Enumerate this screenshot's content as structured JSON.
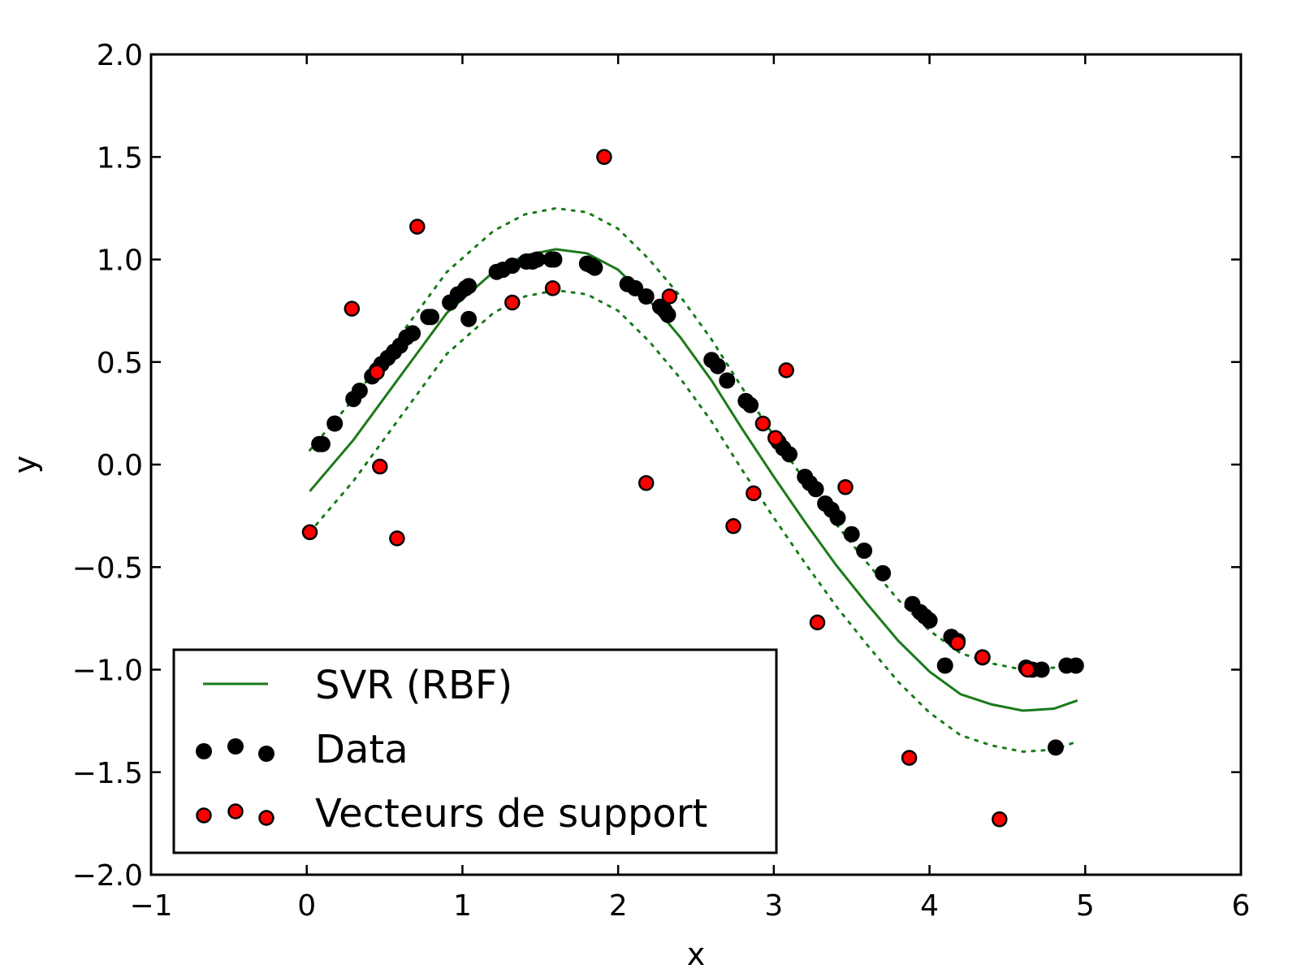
{
  "chart_data": {
    "type": "scatter",
    "title": "",
    "xlabel": "x",
    "ylabel": "y",
    "xlim": [
      -1,
      6
    ],
    "ylim": [
      -2.0,
      2.0
    ],
    "xticks": [
      -1,
      0,
      1,
      2,
      3,
      4,
      5,
      6
    ],
    "xtick_labels": [
      "−1",
      "0",
      "1",
      "2",
      "3",
      "4",
      "5",
      "6"
    ],
    "yticks": [
      -2.0,
      -1.5,
      -1.0,
      -0.5,
      0.0,
      0.5,
      1.0,
      1.5,
      2.0
    ],
    "ytick_labels": [
      "−2.0",
      "−1.5",
      "−1.0",
      "−0.5",
      "0.0",
      "0.5",
      "1.0",
      "1.5",
      "2.0"
    ],
    "grid": false,
    "legend_position": "lower-left",
    "colors": {
      "svr_line": "#1a7a1a",
      "data_point": "#000000",
      "support_vector": "#ff0000"
    },
    "series": [
      {
        "name": "SVR (RBF)",
        "kind": "line",
        "x": [
          0.02,
          0.3,
          0.6,
          0.9,
          1.2,
          1.4,
          1.6,
          1.8,
          2.0,
          2.2,
          2.4,
          2.6,
          2.8,
          3.0,
          3.2,
          3.4,
          3.6,
          3.8,
          4.0,
          4.2,
          4.4,
          4.6,
          4.8,
          4.95
        ],
        "y": [
          -0.13,
          0.12,
          0.43,
          0.74,
          0.94,
          1.02,
          1.05,
          1.03,
          0.95,
          0.8,
          0.62,
          0.41,
          0.17,
          -0.06,
          -0.28,
          -0.49,
          -0.68,
          -0.86,
          -1.01,
          -1.12,
          -1.17,
          -1.2,
          -1.19,
          -1.15
        ]
      },
      {
        "name": "",
        "kind": "band-upper",
        "x": [
          0.02,
          0.3,
          0.6,
          0.9,
          1.2,
          1.4,
          1.6,
          1.8,
          2.0,
          2.2,
          2.4,
          2.6,
          2.8,
          3.0,
          3.2,
          3.4,
          3.6,
          3.8,
          4.0,
          4.2,
          4.4,
          4.6,
          4.8,
          4.95
        ],
        "y": [
          0.07,
          0.32,
          0.63,
          0.94,
          1.14,
          1.22,
          1.25,
          1.23,
          1.15,
          1.0,
          0.82,
          0.61,
          0.37,
          0.14,
          -0.08,
          -0.29,
          -0.48,
          -0.66,
          -0.81,
          -0.92,
          -0.97,
          -1.0,
          -0.99,
          -0.95
        ]
      },
      {
        "name": "",
        "kind": "band-lower",
        "x": [
          0.02,
          0.3,
          0.6,
          0.9,
          1.2,
          1.4,
          1.6,
          1.8,
          2.0,
          2.2,
          2.4,
          2.6,
          2.8,
          3.0,
          3.2,
          3.4,
          3.6,
          3.8,
          4.0,
          4.2,
          4.4,
          4.6,
          4.8,
          4.95
        ],
        "y": [
          -0.33,
          -0.08,
          0.23,
          0.54,
          0.74,
          0.82,
          0.85,
          0.83,
          0.75,
          0.6,
          0.42,
          0.21,
          -0.03,
          -0.26,
          -0.48,
          -0.69,
          -0.88,
          -1.06,
          -1.21,
          -1.32,
          -1.37,
          -1.4,
          -1.39,
          -1.35
        ]
      },
      {
        "name": "Data",
        "kind": "scatter",
        "points": [
          [
            0.08,
            0.1
          ],
          [
            0.1,
            0.1
          ],
          [
            0.18,
            0.2
          ],
          [
            0.3,
            0.32
          ],
          [
            0.34,
            0.36
          ],
          [
            0.42,
            0.43
          ],
          [
            0.45,
            0.46
          ],
          [
            0.48,
            0.49
          ],
          [
            0.52,
            0.52
          ],
          [
            0.56,
            0.55
          ],
          [
            0.6,
            0.58
          ],
          [
            0.64,
            0.62
          ],
          [
            0.68,
            0.64
          ],
          [
            0.78,
            0.72
          ],
          [
            0.8,
            0.72
          ],
          [
            0.92,
            0.79
          ],
          [
            0.97,
            0.83
          ],
          [
            1.02,
            0.86
          ],
          [
            1.04,
            0.87
          ],
          [
            1.04,
            0.71
          ],
          [
            1.22,
            0.94
          ],
          [
            1.26,
            0.95
          ],
          [
            1.32,
            0.97
          ],
          [
            1.41,
            0.99
          ],
          [
            1.45,
            0.99
          ],
          [
            1.48,
            1.0
          ],
          [
            1.57,
            1.0
          ],
          [
            1.59,
            1.0
          ],
          [
            1.8,
            0.98
          ],
          [
            1.83,
            0.97
          ],
          [
            1.85,
            0.96
          ],
          [
            2.06,
            0.88
          ],
          [
            2.11,
            0.86
          ],
          [
            2.18,
            0.82
          ],
          [
            2.27,
            0.77
          ],
          [
            2.3,
            0.75
          ],
          [
            2.32,
            0.73
          ],
          [
            2.6,
            0.51
          ],
          [
            2.64,
            0.48
          ],
          [
            2.7,
            0.41
          ],
          [
            2.82,
            0.31
          ],
          [
            2.85,
            0.29
          ],
          [
            3.03,
            0.11
          ],
          [
            3.06,
            0.08
          ],
          [
            3.1,
            0.05
          ],
          [
            3.2,
            -0.06
          ],
          [
            3.23,
            -0.09
          ],
          [
            3.27,
            -0.12
          ],
          [
            3.33,
            -0.19
          ],
          [
            3.37,
            -0.22
          ],
          [
            3.41,
            -0.26
          ],
          [
            3.5,
            -0.34
          ],
          [
            3.58,
            -0.42
          ],
          [
            3.7,
            -0.53
          ],
          [
            3.89,
            -0.68
          ],
          [
            3.94,
            -0.72
          ],
          [
            3.97,
            -0.74
          ],
          [
            4.0,
            -0.76
          ],
          [
            4.1,
            -0.98
          ],
          [
            4.14,
            -0.84
          ],
          [
            4.18,
            -0.86
          ],
          [
            4.34,
            -0.94
          ],
          [
            4.62,
            -0.99
          ],
          [
            4.66,
            -1.0
          ],
          [
            4.72,
            -1.0
          ],
          [
            4.81,
            -1.38
          ],
          [
            4.88,
            -0.98
          ],
          [
            4.94,
            -0.98
          ]
        ]
      },
      {
        "name": "Vecteurs de support",
        "kind": "scatter",
        "points": [
          [
            0.02,
            -0.33
          ],
          [
            0.29,
            0.76
          ],
          [
            0.45,
            0.45
          ],
          [
            0.47,
            -0.01
          ],
          [
            0.58,
            -0.36
          ],
          [
            0.71,
            1.16
          ],
          [
            1.32,
            0.79
          ],
          [
            1.58,
            0.86
          ],
          [
            1.91,
            1.5
          ],
          [
            2.18,
            -0.09
          ],
          [
            2.33,
            0.82
          ],
          [
            2.74,
            -0.3
          ],
          [
            2.87,
            -0.14
          ],
          [
            2.93,
            0.2
          ],
          [
            3.01,
            0.13
          ],
          [
            3.08,
            0.46
          ],
          [
            3.28,
            -0.77
          ],
          [
            3.46,
            -0.11
          ],
          [
            3.87,
            -1.43
          ],
          [
            4.18,
            -0.87
          ],
          [
            4.34,
            -0.94
          ],
          [
            4.45,
            -1.73
          ],
          [
            4.63,
            -1.0
          ]
        ]
      }
    ]
  }
}
